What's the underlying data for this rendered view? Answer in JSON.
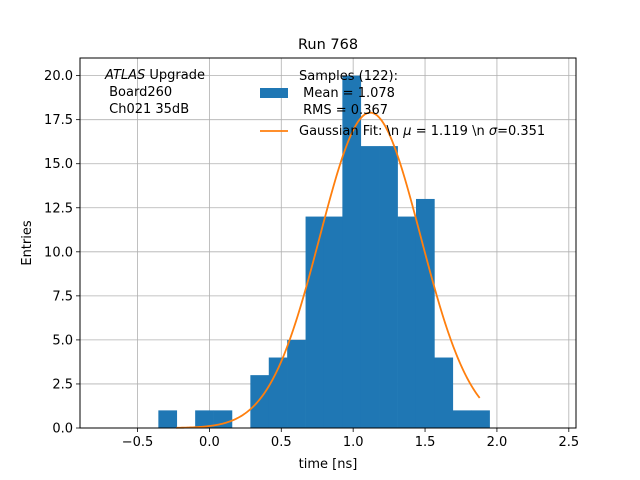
{
  "chart_data": {
    "type": "bar",
    "title": "Run 768",
    "xlabel": "time [ns]",
    "ylabel": "Entries",
    "xlim": [
      -0.9,
      2.55
    ],
    "ylim": [
      0,
      21
    ],
    "grid": true,
    "xticks": [
      -0.5,
      0.0,
      0.5,
      1.0,
      1.5,
      2.0,
      2.5
    ],
    "xtick_labels": [
      "−0.5",
      "0.0",
      "0.5",
      "1.0",
      "1.5",
      "2.0",
      "2.5"
    ],
    "yticks": [
      0.0,
      2.5,
      5.0,
      7.5,
      10.0,
      12.5,
      15.0,
      17.5,
      20.0
    ],
    "ytick_labels": [
      "0.0",
      "2.5",
      "5.0",
      "7.5",
      "10.0",
      "12.5",
      "15.0",
      "17.5",
      "20.0"
    ],
    "histogram": {
      "bin_width": 0.128,
      "bins": [
        {
          "left": -0.355,
          "count": 1
        },
        {
          "left": -0.227,
          "count": 0
        },
        {
          "left": -0.099,
          "count": 1
        },
        {
          "left": 0.029,
          "count": 1
        },
        {
          "left": 0.157,
          "count": 0
        },
        {
          "left": 0.285,
          "count": 3
        },
        {
          "left": 0.413,
          "count": 4
        },
        {
          "left": 0.541,
          "count": 5
        },
        {
          "left": 0.669,
          "count": 12
        },
        {
          "left": 0.797,
          "count": 12
        },
        {
          "left": 0.925,
          "count": 20
        },
        {
          "left": 1.053,
          "count": 16
        },
        {
          "left": 1.181,
          "count": 16
        },
        {
          "left": 1.309,
          "count": 12
        },
        {
          "left": 1.437,
          "count": 13
        },
        {
          "left": 1.565,
          "count": 4
        },
        {
          "left": 1.693,
          "count": 1
        },
        {
          "left": 1.821,
          "count": 1
        }
      ]
    },
    "gaussian_fit": {
      "mu": 1.119,
      "sigma": 0.351,
      "amplitude": 17.9,
      "x_range": [
        -0.23,
        1.88
      ]
    },
    "annotation": {
      "italic": "ATLAS",
      "line1_rest": " Upgrade",
      "line2": " Board260",
      "line3": " Ch021 35dB"
    },
    "legend": {
      "placement": "upper-center",
      "hist_label_lines": [
        "Samples (122):",
        " Mean = 1.078",
        " RMS = 0.367"
      ],
      "fit_label_prefix": "Gaussian Fit: \\n ",
      "mu_symbol": "μ",
      "fit_label_mid": " = 1.119 \\n ",
      "sigma_symbol": "σ",
      "fit_label_end": "=0.351"
    },
    "colors": {
      "bars": "#1f77b4",
      "fit_line": "#ff7f0e",
      "grid": "#b0b0b0",
      "axes": "#000000",
      "background": "#ffffff"
    }
  }
}
